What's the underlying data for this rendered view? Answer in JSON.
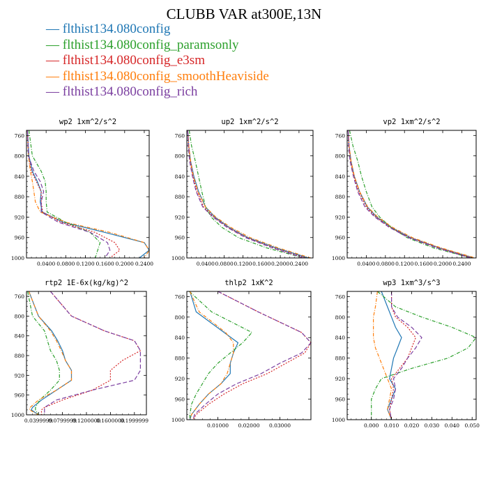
{
  "title": "CLUBB VAR at300E,13N",
  "legend": [
    {
      "label": "— flthist134.080config",
      "color": "#1f77b4"
    },
    {
      "label": "— flthist134.080config_paramsonly",
      "color": "#2ca02c"
    },
    {
      "label": "— flthist134.080config_e3sm",
      "color": "#d62728"
    },
    {
      "label": "— flthist134.080config_smoothHeaviside",
      "color": "#ff7f0e"
    },
    {
      "label": "— flthist134.080config_rich",
      "color": "#7b3fa0"
    }
  ],
  "chart_data": [
    {
      "type": "line",
      "title": "wp2   1xm^2/s^2",
      "xlim": [
        0,
        0.25
      ],
      "ylim": [
        1000,
        750
      ],
      "xticks": [
        "0.0400",
        "0.0800",
        "0.1200",
        "0.1600",
        "0.2000",
        "0.2400"
      ],
      "xtick_values": [
        0.04,
        0.08,
        0.12,
        0.16,
        0.2,
        0.24
      ],
      "yticks": [
        760,
        800,
        840,
        880,
        920,
        960,
        1000
      ],
      "y": [
        750,
        800,
        830,
        850,
        870,
        890,
        910,
        930,
        950,
        970,
        985,
        1000
      ],
      "series": [
        {
          "values": [
            0.002,
            0.005,
            0.012,
            0.022,
            0.03,
            0.028,
            0.032,
            0.075,
            0.16,
            0.24,
            0.25,
            0.23
          ],
          "color": "#1f77b4",
          "dash": ""
        },
        {
          "values": [
            0.005,
            0.012,
            0.03,
            0.038,
            0.04,
            0.04,
            0.042,
            0.08,
            0.13,
            0.15,
            0.145,
            0.14
          ],
          "color": "#2ca02c",
          "dash": "5,2,1,2"
        },
        {
          "values": [
            0.002,
            0.004,
            0.01,
            0.02,
            0.03,
            0.03,
            0.033,
            0.07,
            0.14,
            0.18,
            0.19,
            0.17
          ],
          "color": "#d62728",
          "dash": "2,2"
        },
        {
          "values": [
            0.002,
            0.004,
            0.008,
            0.012,
            0.015,
            0.018,
            0.028,
            0.08,
            0.17,
            0.24,
            0.25,
            0.24
          ],
          "color": "#ff7f0e",
          "dash": "5,2,1,2"
        },
        {
          "values": [
            0.002,
            0.004,
            0.015,
            0.028,
            0.035,
            0.03,
            0.03,
            0.065,
            0.13,
            0.165,
            0.17,
            0.16
          ],
          "color": "#7b3fa0",
          "dash": "6,3"
        }
      ]
    },
    {
      "type": "line",
      "title": "up2   1xm^2/s^2",
      "xlim": [
        0,
        0.27
      ],
      "ylim": [
        1000,
        750
      ],
      "xticks": [
        "0.0400",
        "0.0800",
        "0.1200",
        "0.1600",
        "0.2000",
        "0.2400"
      ],
      "xtick_values": [
        0.04,
        0.08,
        0.12,
        0.16,
        0.2,
        0.24
      ],
      "yticks": [
        760,
        800,
        840,
        880,
        920,
        960,
        1000
      ],
      "y": [
        750,
        780,
        810,
        840,
        870,
        900,
        920,
        940,
        960,
        980,
        1000
      ],
      "series": [
        {
          "values": [
            0.002,
            0.004,
            0.008,
            0.015,
            0.025,
            0.04,
            0.06,
            0.09,
            0.13,
            0.19,
            0.26
          ],
          "color": "#1f77b4",
          "dash": ""
        },
        {
          "values": [
            0.005,
            0.01,
            0.018,
            0.025,
            0.032,
            0.04,
            0.052,
            0.075,
            0.11,
            0.17,
            0.25
          ],
          "color": "#2ca02c",
          "dash": "5,2,1,2"
        },
        {
          "values": [
            0.002,
            0.004,
            0.007,
            0.013,
            0.022,
            0.036,
            0.058,
            0.088,
            0.128,
            0.185,
            0.255
          ],
          "color": "#d62728",
          "dash": "2,2"
        },
        {
          "values": [
            0.002,
            0.004,
            0.008,
            0.014,
            0.024,
            0.04,
            0.062,
            0.094,
            0.135,
            0.195,
            0.265
          ],
          "color": "#ff7f0e",
          "dash": "5,2,1,2"
        },
        {
          "values": [
            0.002,
            0.003,
            0.006,
            0.012,
            0.02,
            0.034,
            0.056,
            0.086,
            0.125,
            0.182,
            0.25
          ],
          "color": "#7b3fa0",
          "dash": "6,3"
        }
      ]
    },
    {
      "type": "line",
      "title": "vp2   1xm^2/s^2",
      "xlim": [
        0,
        0.27
      ],
      "ylim": [
        1000,
        750
      ],
      "xticks": [
        "0.0400",
        "0.0800",
        "0.1200",
        "0.1600",
        "0.2000",
        "0.2400"
      ],
      "xtick_values": [
        0.04,
        0.08,
        0.12,
        0.16,
        0.2,
        0.24
      ],
      "yticks": [
        760,
        800,
        840,
        880,
        920,
        960,
        1000
      ],
      "y": [
        750,
        780,
        810,
        840,
        870,
        900,
        920,
        940,
        960,
        980,
        1000
      ],
      "series": [
        {
          "values": [
            0.002,
            0.004,
            0.008,
            0.015,
            0.026,
            0.042,
            0.062,
            0.092,
            0.132,
            0.192,
            0.265
          ],
          "color": "#1f77b4",
          "dash": ""
        },
        {
          "values": [
            0.005,
            0.012,
            0.022,
            0.03,
            0.04,
            0.052,
            0.068,
            0.092,
            0.125,
            0.18,
            0.26
          ],
          "color": "#2ca02c",
          "dash": "5,2,1,2"
        },
        {
          "values": [
            0.002,
            0.004,
            0.007,
            0.014,
            0.024,
            0.04,
            0.06,
            0.09,
            0.13,
            0.19,
            0.262
          ],
          "color": "#d62728",
          "dash": "2,2"
        },
        {
          "values": [
            0.002,
            0.004,
            0.008,
            0.015,
            0.026,
            0.043,
            0.064,
            0.095,
            0.136,
            0.196,
            0.268
          ],
          "color": "#ff7f0e",
          "dash": "5,2,1,2"
        },
        {
          "values": [
            0.002,
            0.003,
            0.006,
            0.013,
            0.022,
            0.037,
            0.058,
            0.088,
            0.128,
            0.187,
            0.258
          ],
          "color": "#7b3fa0",
          "dash": "6,3"
        }
      ]
    },
    {
      "type": "line",
      "title": "rtp2   1E-6x(kg/kg)^2",
      "xlim": [
        0.02,
        0.22
      ],
      "ylim": [
        1000,
        750
      ],
      "xticks": [
        "0.0399999",
        "0.0799999",
        "0.1200000",
        "0.1600000",
        "0.1999999"
      ],
      "xtick_values": [
        0.04,
        0.08,
        0.12,
        0.16,
        0.2
      ],
      "yticks": [
        760,
        800,
        840,
        880,
        920,
        960,
        1000
      ],
      "y": [
        750,
        800,
        830,
        850,
        870,
        890,
        910,
        930,
        950,
        970,
        985,
        990,
        1000
      ],
      "series": [
        {
          "values": [
            0.024,
            0.04,
            0.062,
            0.072,
            0.08,
            0.085,
            0.095,
            0.095,
            0.07,
            0.045,
            0.03,
            0.028,
            0.04
          ],
          "color": "#1f77b4",
          "dash": ""
        },
        {
          "values": [
            0.022,
            0.03,
            0.05,
            0.055,
            0.06,
            0.07,
            0.075,
            0.075,
            0.06,
            0.042,
            0.035,
            0.035,
            0.04
          ],
          "color": "#2ca02c",
          "dash": "5,2,1,2"
        },
        {
          "values": [
            0.06,
            0.095,
            0.15,
            0.2,
            0.21,
            0.18,
            0.16,
            0.16,
            0.13,
            0.08,
            0.05,
            0.045,
            0.045
          ],
          "color": "#d62728",
          "dash": "2,2"
        },
        {
          "values": [
            0.024,
            0.04,
            0.06,
            0.07,
            0.078,
            0.085,
            0.095,
            0.095,
            0.07,
            0.04,
            0.026,
            0.025,
            0.04
          ],
          "color": "#ff7f0e",
          "dash": "5,2,1,2"
        },
        {
          "values": [
            0.06,
            0.095,
            0.15,
            0.2,
            0.21,
            0.21,
            0.21,
            0.2,
            0.13,
            0.07,
            0.05,
            0.05,
            0.05
          ],
          "color": "#7b3fa0",
          "dash": "6,3"
        }
      ]
    },
    {
      "type": "line",
      "title": "thlp2   1xK^2",
      "xlim": [
        0,
        0.04
      ],
      "ylim": [
        1000,
        750
      ],
      "xticks": [
        "0.01000",
        "0.02000",
        "0.03000"
      ],
      "xtick_values": [
        0.01,
        0.02,
        0.03
      ],
      "yticks": [
        760,
        800,
        840,
        880,
        920,
        960,
        1000
      ],
      "y": [
        750,
        790,
        830,
        850,
        870,
        890,
        910,
        930,
        950,
        970,
        990,
        1000
      ],
      "series": [
        {
          "values": [
            0.001,
            0.003,
            0.012,
            0.0165,
            0.015,
            0.014,
            0.014,
            0.011,
            0.007,
            0.004,
            0.0015,
            0.001
          ],
          "color": "#1f77b4",
          "dash": ""
        },
        {
          "values": [
            0.0008,
            0.008,
            0.021,
            0.018,
            0.014,
            0.01,
            0.007,
            0.005,
            0.003,
            0.0015,
            0.001,
            0.001
          ],
          "color": "#2ca02c",
          "dash": "5,2,1,2"
        },
        {
          "values": [
            0.01,
            0.023,
            0.037,
            0.04,
            0.038,
            0.032,
            0.026,
            0.018,
            0.012,
            0.007,
            0.003,
            0.002
          ],
          "color": "#d62728",
          "dash": "2,2"
        },
        {
          "values": [
            0.001,
            0.004,
            0.0125,
            0.015,
            0.015,
            0.014,
            0.013,
            0.011,
            0.007,
            0.004,
            0.0015,
            0.001
          ],
          "color": "#ff7f0e",
          "dash": "5,2,1,2"
        },
        {
          "values": [
            0.01,
            0.023,
            0.037,
            0.04,
            0.037,
            0.03,
            0.024,
            0.016,
            0.01,
            0.006,
            0.0025,
            0.002
          ],
          "color": "#7b3fa0",
          "dash": "6,3"
        }
      ]
    },
    {
      "type": "line",
      "title": "wp3   1xm^3/s^3",
      "xlim": [
        -0.012,
        0.052
      ],
      "ylim": [
        1000,
        750
      ],
      "xticks": [
        "0.000",
        "0.010",
        "0.020",
        "0.030",
        "0.040",
        "0.050"
      ],
      "xtick_values": [
        0,
        0.01,
        0.02,
        0.03,
        0.04,
        0.05
      ],
      "yticks": [
        760,
        800,
        840,
        880,
        920,
        960,
        1000
      ],
      "y": [
        750,
        780,
        800,
        820,
        840,
        860,
        880,
        900,
        920,
        940,
        960,
        980,
        1000
      ],
      "series": [
        {
          "values": [
            0.005,
            0.008,
            0.01,
            0.012,
            0.015,
            0.013,
            0.011,
            0.01,
            0.009,
            0.012,
            0.01,
            0.008,
            0.01
          ],
          "color": "#1f77b4",
          "dash": ""
        },
        {
          "values": [
            0.003,
            0.012,
            0.025,
            0.04,
            0.052,
            0.048,
            0.038,
            0.02,
            0.005,
            0.002,
            0.0,
            0.0,
            0.0
          ],
          "color": "#2ca02c",
          "dash": "5,2,1,2"
        },
        {
          "values": [
            0.01,
            0.01,
            0.012,
            0.018,
            0.022,
            0.02,
            0.018,
            0.014,
            0.01,
            0.011,
            0.01,
            0.009,
            0.01
          ],
          "color": "#d62728",
          "dash": "2,2"
        },
        {
          "values": [
            0.003,
            0.002,
            0.001,
            0.001,
            0.001,
            0.002,
            0.004,
            0.006,
            0.008,
            0.01,
            0.009,
            0.008,
            0.01
          ],
          "color": "#ff7f0e",
          "dash": "5,2,1,2"
        },
        {
          "values": [
            0.01,
            0.01,
            0.013,
            0.02,
            0.025,
            0.022,
            0.018,
            0.015,
            0.011,
            0.012,
            0.011,
            0.009,
            0.01
          ],
          "color": "#7b3fa0",
          "dash": "6,3"
        }
      ]
    }
  ]
}
